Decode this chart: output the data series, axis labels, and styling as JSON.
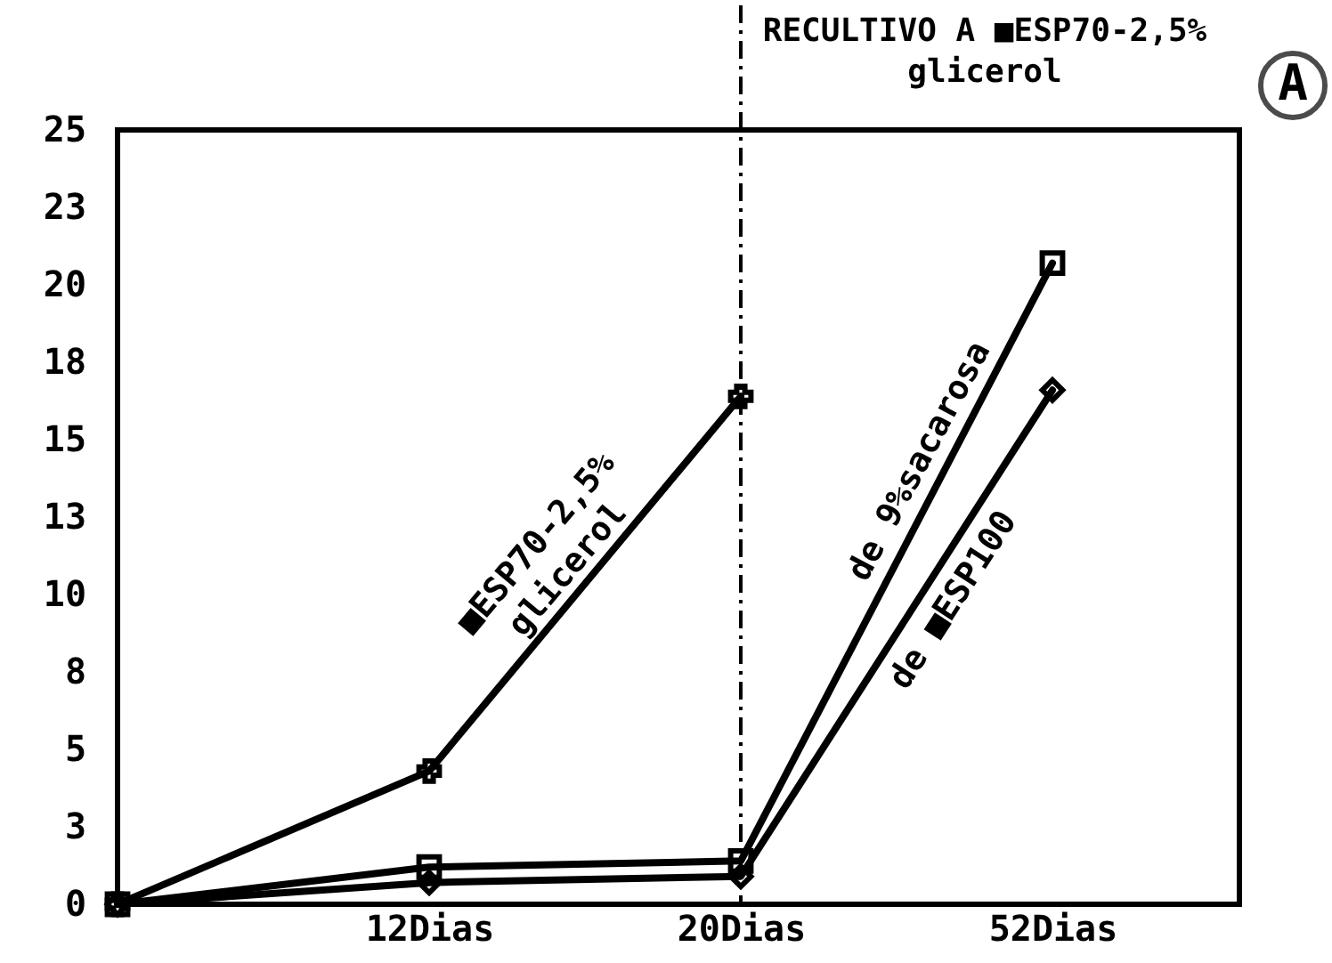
{
  "chart_data": {
    "type": "line",
    "categories": [
      null,
      "12Dias",
      "20Dias",
      "52Dias"
    ],
    "series": [
      {
        "color": "#000000",
        "marker": "cross",
        "values": [
          0,
          4.3,
          16.4,
          null
        ]
      },
      {
        "color": "#000000",
        "marker": "square",
        "values": [
          0,
          1.2,
          1.4,
          20.7
        ]
      },
      {
        "color": "#000000",
        "marker": "diamond",
        "values": [
          0,
          0.7,
          0.9,
          16.6
        ]
      }
    ],
    "ylim": [
      0,
      25
    ],
    "yticks": [
      0,
      {
        "value": 2.5,
        "label": "3"
      },
      5,
      {
        "value": 7.5,
        "label": "8"
      },
      10,
      {
        "value": 12.5,
        "label": "13"
      },
      15,
      {
        "value": 17.5,
        "label": "18"
      },
      20,
      {
        "value": 22.5,
        "label": "23"
      },
      25
    ],
    "ref_lines": [
      {
        "axis": "x",
        "value": "20Dias",
        "line_style": "dashed"
      }
    ],
    "annotations": [
      "■ESP70-2,5%\nglicerol",
      "de 9%sacarosa",
      "de ■ESP100",
      "RECULTIVO A ■ESP70-2,5%\nglicerol",
      "A"
    ]
  }
}
